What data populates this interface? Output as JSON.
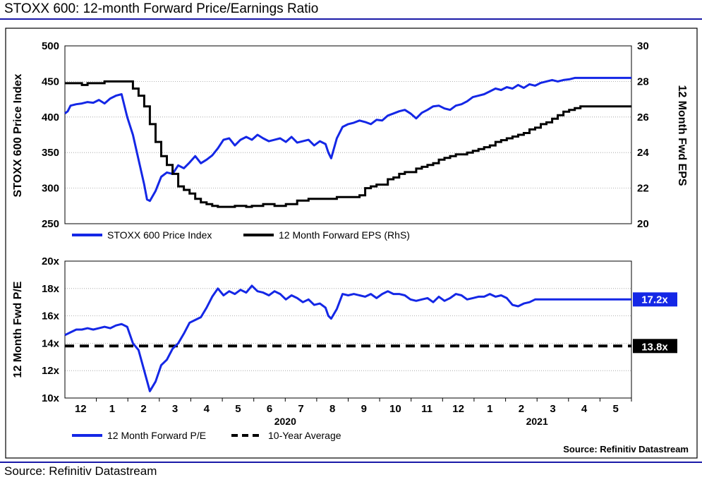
{
  "page": {
    "title": "STOXX 600: 12-month Forward Price/Earnings Ratio",
    "source_bottom": "Source: Refinitiv Datastream",
    "source_inner": "Source: Refinitiv Datastream"
  },
  "colors": {
    "blue": "#1427e6",
    "black": "#000000",
    "frame_line": "#1a1aa8",
    "grid": "#9a9a9a"
  },
  "chart_data": [
    {
      "type": "line",
      "panel": "top",
      "ylabel": "STOXX 600 Price Index",
      "y2label": "12 Month Fwd EPS",
      "ylim": [
        250,
        500
      ],
      "y2lim": [
        20,
        30
      ],
      "yticks": [
        "500",
        "450",
        "400",
        "350",
        "300",
        "250"
      ],
      "y2ticks": [
        "30",
        "28",
        "26",
        "24",
        "22",
        "20"
      ],
      "grid": true,
      "legend_position": "bottom",
      "series": [
        {
          "name": "STOXX 600 Price Index",
          "axis": "left",
          "color": "#1427e6",
          "x": [
            0,
            1,
            2,
            4,
            6,
            8,
            10,
            12,
            14,
            16,
            18,
            20,
            22,
            24,
            26,
            28,
            29,
            30,
            32,
            34,
            36,
            38,
            40,
            42,
            44,
            46,
            48,
            50,
            52,
            54,
            56,
            58,
            60,
            62,
            64,
            66,
            68,
            70,
            72,
            74,
            76,
            78,
            80,
            82,
            84,
            86,
            88,
            90,
            92,
            93,
            94,
            96,
            98,
            100,
            102,
            104,
            106,
            108,
            110,
            112,
            114,
            116,
            118,
            120,
            122,
            124,
            126,
            128,
            130,
            132,
            134,
            136,
            138,
            140,
            142,
            144,
            146,
            148,
            150,
            152,
            154,
            156,
            158,
            160,
            162,
            164,
            166,
            168,
            170,
            172,
            174,
            176,
            178,
            180,
            182,
            184,
            186,
            188,
            190,
            192,
            194,
            196,
            198,
            200
          ],
          "values": [
            405,
            408,
            416,
            418,
            419,
            421,
            420,
            424,
            419,
            426,
            430,
            432,
            400,
            375,
            340,
            305,
            284,
            282,
            296,
            316,
            322,
            320,
            332,
            328,
            336,
            345,
            335,
            340,
            346,
            356,
            368,
            370,
            360,
            368,
            372,
            368,
            375,
            370,
            366,
            368,
            370,
            365,
            372,
            364,
            366,
            368,
            360,
            366,
            362,
            350,
            342,
            370,
            386,
            390,
            392,
            395,
            393,
            390,
            396,
            395,
            402,
            405,
            408,
            410,
            405,
            398,
            406,
            410,
            415,
            416,
            412,
            410,
            416,
            418,
            422,
            428,
            430,
            432,
            436,
            440,
            438,
            442,
            440,
            445,
            441,
            446,
            444,
            448,
            450,
            452,
            450,
            452,
            453,
            455,
            455,
            455,
            455,
            455,
            455,
            455,
            455,
            455,
            455,
            455
          ]
        },
        {
          "name": "12 Month Forward EPS (RhS)",
          "axis": "right",
          "color": "#000000",
          "x": [
            0,
            4,
            6,
            8,
            10,
            12,
            14,
            16,
            18,
            20,
            24,
            26,
            28,
            30,
            32,
            34,
            36,
            38,
            40,
            42,
            44,
            46,
            48,
            50,
            52,
            54,
            58,
            60,
            64,
            66,
            70,
            74,
            78,
            82,
            86,
            88,
            90,
            94,
            96,
            100,
            102,
            104,
            106,
            108,
            110,
            112,
            114,
            116,
            118,
            120,
            124,
            126,
            128,
            130,
            132,
            134,
            136,
            138,
            140,
            142,
            144,
            146,
            148,
            150,
            152,
            154,
            156,
            158,
            160,
            162,
            164,
            166,
            168,
            170,
            172,
            174,
            176,
            178,
            180,
            182,
            184,
            186,
            188,
            190,
            192,
            194,
            196,
            198,
            200
          ],
          "values": [
            27.9,
            27.9,
            27.8,
            27.9,
            27.9,
            27.9,
            28.0,
            28.0,
            28.0,
            28.0,
            27.6,
            27.2,
            26.6,
            25.6,
            24.6,
            23.8,
            23.3,
            22.8,
            22.1,
            21.9,
            21.7,
            21.4,
            21.2,
            21.1,
            21.0,
            20.95,
            20.95,
            21.0,
            20.95,
            21.0,
            21.1,
            21.0,
            21.1,
            21.3,
            21.4,
            21.4,
            21.4,
            21.4,
            21.5,
            21.5,
            21.5,
            21.6,
            22.0,
            22.1,
            22.2,
            22.2,
            22.5,
            22.6,
            22.8,
            22.9,
            23.1,
            23.2,
            23.3,
            23.4,
            23.6,
            23.7,
            23.8,
            23.9,
            23.9,
            24.0,
            24.1,
            24.2,
            24.3,
            24.4,
            24.6,
            24.7,
            24.8,
            24.9,
            25.0,
            25.1,
            25.3,
            25.4,
            25.6,
            25.7,
            25.9,
            26.1,
            26.3,
            26.4,
            26.5,
            26.6,
            26.6,
            26.6,
            26.6,
            26.6,
            26.6,
            26.6,
            26.6,
            26.6,
            26.6
          ]
        }
      ]
    },
    {
      "type": "line",
      "panel": "bottom",
      "ylabel": "12 Month Fwd P/E",
      "ylim": [
        10,
        20
      ],
      "yticks": [
        "20x",
        "18x",
        "16x",
        "14x",
        "12x",
        "10x"
      ],
      "grid": true,
      "legend_position": "bottom",
      "x_month_labels": [
        "12",
        "1",
        "2",
        "3",
        "4",
        "5",
        "6",
        "7",
        "8",
        "9",
        "10",
        "11",
        "12",
        "1",
        "2",
        "3",
        "4",
        "5"
      ],
      "x_year_labels": [
        "2020",
        "2021"
      ],
      "series": [
        {
          "name": "12 Month Forward P/E",
          "color": "#1427e6",
          "x": [
            0,
            2,
            4,
            6,
            8,
            10,
            12,
            14,
            16,
            18,
            20,
            22,
            24,
            26,
            28,
            30,
            32,
            34,
            36,
            38,
            40,
            42,
            44,
            46,
            48,
            50,
            52,
            54,
            56,
            58,
            60,
            62,
            64,
            66,
            68,
            70,
            72,
            74,
            76,
            78,
            80,
            82,
            84,
            86,
            88,
            90,
            92,
            93,
            94,
            96,
            98,
            100,
            102,
            104,
            106,
            108,
            110,
            112,
            114,
            116,
            118,
            120,
            122,
            124,
            126,
            128,
            130,
            132,
            134,
            136,
            138,
            140,
            142,
            144,
            146,
            148,
            150,
            152,
            154,
            156,
            158,
            160,
            162,
            164,
            166,
            168,
            170,
            172,
            174,
            176,
            178,
            180,
            182,
            184,
            186,
            188,
            190,
            192,
            194,
            196,
            198,
            200
          ],
          "values": [
            14.6,
            14.8,
            15.0,
            15.0,
            15.1,
            15.0,
            15.1,
            15.2,
            15.1,
            15.3,
            15.4,
            15.2,
            14.0,
            13.5,
            12.0,
            10.5,
            11.2,
            12.4,
            12.8,
            13.6,
            14.0,
            14.7,
            15.5,
            15.7,
            15.9,
            16.6,
            17.4,
            18.0,
            17.5,
            17.8,
            17.6,
            17.9,
            17.7,
            18.2,
            17.8,
            17.7,
            17.5,
            17.8,
            17.6,
            17.2,
            17.5,
            17.3,
            17.0,
            17.2,
            16.8,
            16.9,
            16.6,
            16.0,
            15.8,
            16.5,
            17.6,
            17.5,
            17.6,
            17.5,
            17.4,
            17.6,
            17.3,
            17.6,
            17.8,
            17.6,
            17.6,
            17.5,
            17.2,
            17.1,
            17.2,
            17.3,
            17.0,
            17.4,
            17.1,
            17.3,
            17.6,
            17.5,
            17.2,
            17.3,
            17.4,
            17.4,
            17.6,
            17.4,
            17.5,
            17.3,
            16.8,
            16.7,
            16.9,
            17.0,
            17.2,
            17.2,
            17.2,
            17.2,
            17.2,
            17.2,
            17.2,
            17.2,
            17.2,
            17.2,
            17.2,
            17.2,
            17.2,
            17.2,
            17.2,
            17.2,
            17.2,
            17.2
          ]
        },
        {
          "name": "10-Year Average",
          "color": "#000000",
          "dashed": true,
          "value": 13.8
        }
      ],
      "annotations": {
        "pe_last": "17.2x",
        "avg": "13.8x"
      }
    }
  ]
}
